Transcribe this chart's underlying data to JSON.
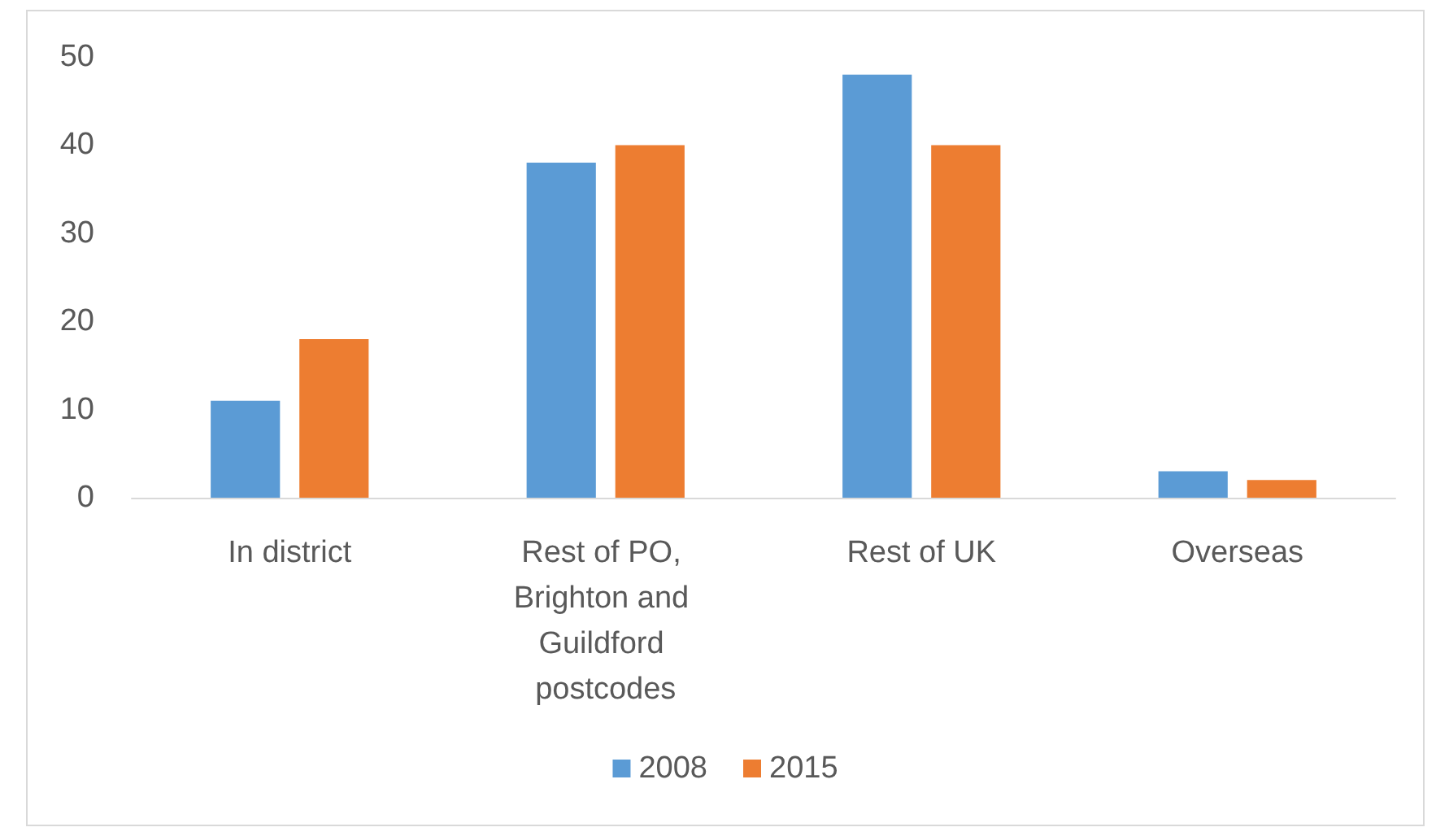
{
  "chart_data": {
    "type": "bar",
    "categories": [
      "In district",
      "Rest of PO, Brighton and Guildford postcodes",
      "Rest of UK",
      "Overseas"
    ],
    "series": [
      {
        "name": "2008",
        "color": "#5b9bd5",
        "values": [
          11,
          38,
          48,
          3
        ]
      },
      {
        "name": "2015",
        "color": "#ed7d31",
        "values": [
          18,
          40,
          40,
          2
        ]
      }
    ],
    "ylim": [
      0,
      50
    ],
    "yticks": [
      0,
      10,
      20,
      30,
      40,
      50
    ],
    "grid": false,
    "legend": "bottom"
  }
}
